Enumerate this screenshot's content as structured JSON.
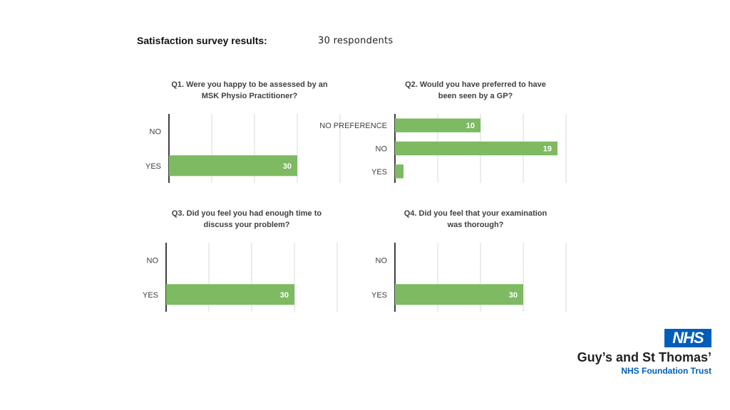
{
  "header": {
    "title": "Satisfaction survey  results:",
    "respondents": "30 respondents"
  },
  "logo": {
    "nhs": "NHS",
    "trust_name": "Guy’s and St Thomas’",
    "trust_subtitle": "NHS Foundation Trust",
    "brand_color": "#005EB8"
  },
  "bar_color": "#7DBA62",
  "chart_data": [
    {
      "type": "bar",
      "orientation": "horizontal",
      "title_lines": [
        "Q1. Were you happy to be assessed by an",
        "MSK Physio Practitioner?"
      ],
      "categories": [
        "NO",
        "YES"
      ],
      "values": [
        0,
        30
      ],
      "data_labels": [
        "",
        "30"
      ],
      "xlim": [
        0,
        40
      ],
      "grid": true
    },
    {
      "type": "bar",
      "orientation": "horizontal",
      "title_lines": [
        "Q2.  Would you have preferred to have",
        "been seen by a GP?"
      ],
      "categories": [
        "NO PREFERENCE",
        "NO",
        "YES"
      ],
      "values": [
        10,
        19,
        1
      ],
      "data_labels": [
        "10",
        "19",
        ""
      ],
      "xlim": [
        0,
        20
      ],
      "grid": true
    },
    {
      "type": "bar",
      "orientation": "horizontal",
      "title_lines": [
        "Q3. Did you feel you had enough time to",
        "discuss your problem?"
      ],
      "categories": [
        "NO",
        "YES"
      ],
      "values": [
        0,
        30
      ],
      "data_labels": [
        "",
        "30"
      ],
      "xlim": [
        0,
        40
      ],
      "grid": true
    },
    {
      "type": "bar",
      "orientation": "horizontal",
      "title_lines": [
        "Q4. Did you feel that your examination",
        "was thorough?"
      ],
      "categories": [
        "NO",
        "YES"
      ],
      "values": [
        0,
        30
      ],
      "data_labels": [
        "",
        "30"
      ],
      "xlim": [
        0,
        40
      ],
      "grid": true
    }
  ]
}
